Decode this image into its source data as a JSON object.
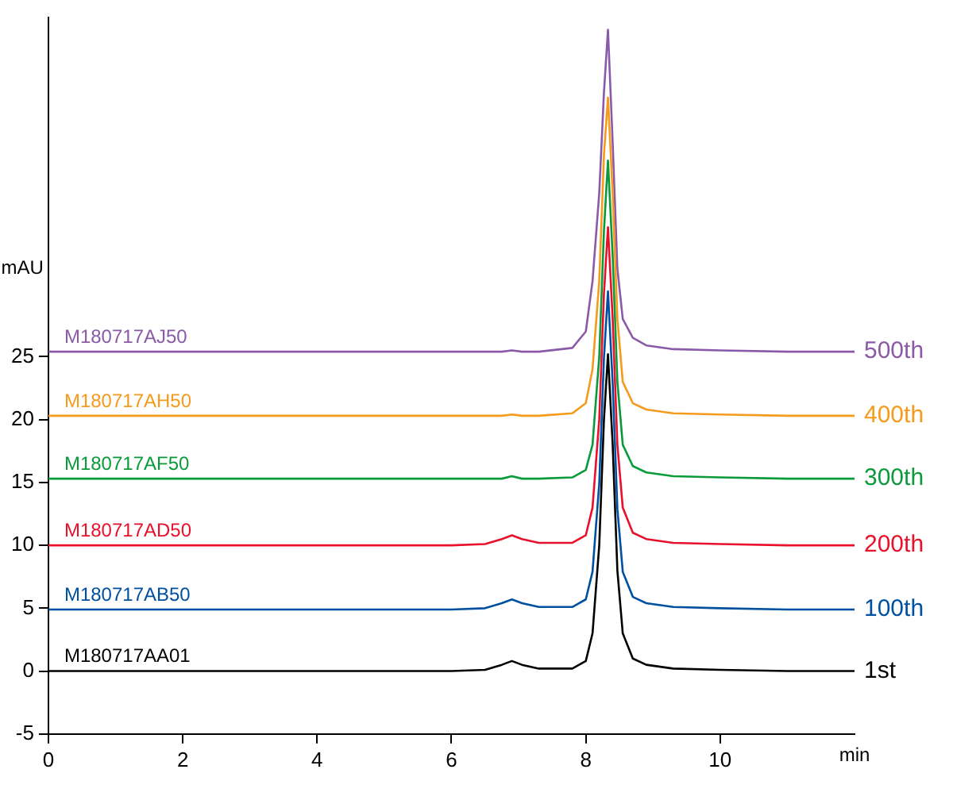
{
  "chart_data": {
    "type": "line",
    "xlabel": "min",
    "ylabel": "mAU",
    "x": [
      0,
      1,
      2,
      3,
      4,
      5,
      6,
      6.5,
      6.75,
      6.9,
      7.05,
      7.3,
      7.8,
      8.0,
      8.1,
      8.2,
      8.27,
      8.33,
      8.4,
      8.47,
      8.55,
      8.7,
      8.9,
      9.3,
      10,
      11,
      12
    ],
    "series": [
      {
        "name": "M180717AA01",
        "color": "#000000",
        "values": [
          0,
          0,
          0,
          0,
          0,
          0,
          0,
          0.1,
          0.5,
          0.8,
          0.5,
          0.2,
          0.2,
          0.8,
          3,
          10,
          20,
          25.2,
          18,
          8,
          3,
          1,
          0.5,
          0.2,
          0.1,
          0,
          0
        ]
      },
      {
        "name": "M180717AB50",
        "color": "#0050a0",
        "values": [
          4.9,
          4.9,
          4.9,
          4.9,
          4.9,
          4.9,
          4.9,
          5,
          5.4,
          5.7,
          5.4,
          5.1,
          5.1,
          5.7,
          7.9,
          14.9,
          24.9,
          30.2,
          22.9,
          12.9,
          7.9,
          5.9,
          5.4,
          5.1,
          5,
          4.9,
          4.9
        ]
      },
      {
        "name": "M180717AD50",
        "color": "#e8102a",
        "values": [
          10,
          10,
          10,
          10,
          10,
          10,
          10,
          10.1,
          10.5,
          10.8,
          10.5,
          10.2,
          10.2,
          10.8,
          13,
          20,
          30,
          35.3,
          28,
          18,
          13,
          11,
          10.5,
          10.2,
          10.1,
          10,
          10
        ]
      },
      {
        "name": "M180717AF50",
        "color": "#0a9a3a",
        "values": [
          15.3,
          15.3,
          15.3,
          15.3,
          15.3,
          15.3,
          15.3,
          15.3,
          15.3,
          15.5,
          15.3,
          15.3,
          15.4,
          16,
          18,
          25,
          35,
          40.6,
          33,
          23,
          18,
          16.3,
          15.8,
          15.5,
          15.4,
          15.3,
          15.3
        ]
      },
      {
        "name": "M180717AH50",
        "color": "#f59a1a",
        "values": [
          20.3,
          20.3,
          20.3,
          20.3,
          20.3,
          20.3,
          20.3,
          20.3,
          20.3,
          20.4,
          20.3,
          20.3,
          20.5,
          21.3,
          24,
          31,
          41,
          45.6,
          38,
          28,
          23,
          21.3,
          20.8,
          20.5,
          20.4,
          20.3,
          20.3
        ]
      },
      {
        "name": "M180717AJ50",
        "color": "#8a5aa8",
        "values": [
          25.4,
          25.4,
          25.4,
          25.4,
          25.4,
          25.4,
          25.4,
          25.4,
          25.4,
          25.5,
          25.4,
          25.4,
          25.7,
          27,
          31,
          38,
          46,
          51,
          42,
          32,
          28,
          26.5,
          25.9,
          25.6,
          25.5,
          25.4,
          25.4
        ]
      }
    ],
    "annotations": [
      "1st",
      "100th",
      "200th",
      "300th",
      "400th",
      "500th"
    ],
    "xlim": [
      0,
      12
    ],
    "xticks": [
      0,
      2,
      4,
      6,
      8,
      10
    ],
    "ylim": [
      -5,
      52
    ],
    "yticks": [
      -5,
      0,
      5,
      10,
      15,
      20,
      25
    ],
    "grid": false,
    "legend": false
  }
}
